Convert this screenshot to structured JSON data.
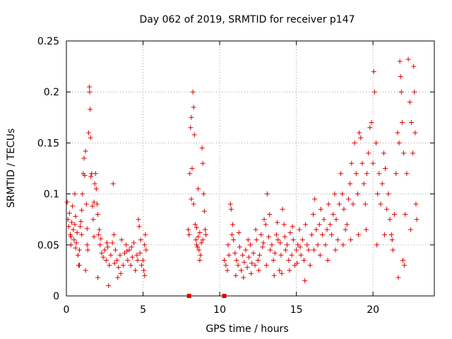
{
  "chart_data": {
    "type": "scatter",
    "title": "Day 062 of 2019, SRMTID for receiver p147",
    "xlabel": "GPS time / hours",
    "ylabel": "SRMTID / TECUs",
    "xlim": [
      0,
      24
    ],
    "ylim": [
      0,
      0.25
    ],
    "xticks": [
      0,
      5,
      10,
      15,
      20
    ],
    "xtick_labels": [
      "0",
      "5",
      "10",
      "15",
      "20"
    ],
    "yticks": [
      0,
      0.05,
      0.1,
      0.15,
      0.2,
      0.25
    ],
    "ytick_labels": [
      "0",
      "0.05",
      "0.1",
      "0.15",
      "0.2",
      "0.25"
    ],
    "grid": true,
    "marker": "+",
    "color": "#e00000",
    "series": [
      {
        "name": "SRMTID",
        "points": [
          [
            0.05,
            0.092
          ],
          [
            0.1,
            0.075
          ],
          [
            0.15,
            0.068
          ],
          [
            0.2,
            0.081
          ],
          [
            0.25,
            0.06
          ],
          [
            0.3,
            0.058
          ],
          [
            0.35,
            0.072
          ],
          [
            0.4,
            0.088
          ],
          [
            0.45,
            0.065
          ],
          [
            0.5,
            0.055
          ],
          [
            0.55,
            0.07
          ],
          [
            0.6,
            0.078
          ],
          [
            0.65,
            0.052
          ],
          [
            0.7,
            0.062
          ],
          [
            0.75,
            0.04
          ],
          [
            0.8,
            0.03
          ],
          [
            0.85,
            0.045
          ],
          [
            0.9,
            0.068
          ],
          [
            0.95,
            0.073
          ],
          [
            1.0,
            0.084
          ],
          [
            1.05,
            0.1
          ],
          [
            1.1,
            0.12
          ],
          [
            1.15,
            0.135
          ],
          [
            1.2,
            0.118
          ],
          [
            1.25,
            0.142
          ],
          [
            1.3,
            0.09
          ],
          [
            1.35,
            0.05
          ],
          [
            1.4,
            0.045
          ],
          [
            1.45,
            0.16
          ],
          [
            1.5,
            0.205
          ],
          [
            1.52,
            0.2
          ],
          [
            1.55,
            0.183
          ],
          [
            1.58,
            0.155
          ],
          [
            1.6,
            0.117
          ],
          [
            1.65,
            0.12
          ],
          [
            1.7,
            0.088
          ],
          [
            1.75,
            0.075
          ],
          [
            1.8,
            0.092
          ],
          [
            1.85,
            0.11
          ],
          [
            1.9,
            0.12
          ],
          [
            1.95,
            0.105
          ],
          [
            2.0,
            0.09
          ],
          [
            2.05,
            0.08
          ],
          [
            2.1,
            0.06
          ],
          [
            2.15,
            0.065
          ],
          [
            2.2,
            0.05
          ],
          [
            2.3,
            0.042
          ],
          [
            2.4,
            0.038
          ],
          [
            2.5,
            0.045
          ],
          [
            2.6,
            0.035
          ],
          [
            2.7,
            0.048
          ],
          [
            2.8,
            0.03
          ],
          [
            2.9,
            0.04
          ],
          [
            3.0,
            0.052
          ],
          [
            3.05,
            0.11
          ],
          [
            3.1,
            0.06
          ],
          [
            3.2,
            0.045
          ],
          [
            3.3,
            0.035
          ],
          [
            3.4,
            0.028
          ],
          [
            3.5,
            0.04
          ],
          [
            3.6,
            0.055
          ],
          [
            3.7,
            0.03
          ],
          [
            3.8,
            0.042
          ],
          [
            3.9,
            0.05
          ],
          [
            4.0,
            0.035
          ],
          [
            4.1,
            0.045
          ],
          [
            4.2,
            0.03
          ],
          [
            4.3,
            0.038
          ],
          [
            4.4,
            0.052
          ],
          [
            4.5,
            0.025
          ],
          [
            4.6,
            0.04
          ],
          [
            4.7,
            0.075
          ],
          [
            4.75,
            0.068
          ],
          [
            4.8,
            0.042
          ],
          [
            4.9,
            0.03
          ],
          [
            5.0,
            0.035
          ],
          [
            5.05,
            0.025
          ],
          [
            5.1,
            0.05
          ],
          [
            5.15,
            0.06
          ],
          [
            5.2,
            0.045
          ],
          [
            0.3,
            0.05
          ],
          [
            0.6,
            0.047
          ],
          [
            1.0,
            0.06
          ],
          [
            1.35,
            0.066
          ],
          [
            1.8,
            0.058
          ],
          [
            2.25,
            0.056
          ],
          [
            2.65,
            0.052
          ],
          [
            3.15,
            0.032
          ],
          [
            3.55,
            0.022
          ],
          [
            3.95,
            0.044
          ],
          [
            4.25,
            0.048
          ],
          [
            4.65,
            0.035
          ],
          [
            5.1,
            0.02
          ],
          [
            2.05,
            0.018
          ],
          [
            1.25,
            0.025
          ],
          [
            0.85,
            0.03
          ],
          [
            2.75,
            0.01
          ],
          [
            3.35,
            0.018
          ],
          [
            4.85,
            0.055
          ],
          [
            0.55,
            0.1
          ],
          [
            7.95,
            0.065
          ],
          [
            8.0,
            0.06
          ],
          [
            8.05,
            0.12
          ],
          [
            8.1,
            0.165
          ],
          [
            8.15,
            0.175
          ],
          [
            8.2,
            0.125
          ],
          [
            8.25,
            0.2
          ],
          [
            8.3,
            0.185
          ],
          [
            8.35,
            0.158
          ],
          [
            8.4,
            0.07
          ],
          [
            8.45,
            0.055
          ],
          [
            8.5,
            0.05
          ],
          [
            8.55,
            0.048
          ],
          [
            8.6,
            0.058
          ],
          [
            8.65,
            0.045
          ],
          [
            8.7,
            0.035
          ],
          [
            8.75,
            0.04
          ],
          [
            8.8,
            0.052
          ],
          [
            8.85,
            0.145
          ],
          [
            8.9,
            0.13
          ],
          [
            8.95,
            0.1
          ],
          [
            9.0,
            0.083
          ],
          [
            9.05,
            0.065
          ],
          [
            9.1,
            0.06
          ],
          [
            8.3,
            0.09
          ],
          [
            8.5,
            0.067
          ],
          [
            8.7,
            0.062
          ],
          [
            8.9,
            0.055
          ],
          [
            8.15,
            0.095
          ],
          [
            8.6,
            0.105
          ],
          [
            10.3,
            0.035
          ],
          [
            10.4,
            0.03
          ],
          [
            10.5,
            0.025
          ],
          [
            10.6,
            0.04
          ],
          [
            10.7,
            0.09
          ],
          [
            10.75,
            0.085
          ],
          [
            10.8,
            0.06
          ],
          [
            10.9,
            0.055
          ],
          [
            11.0,
            0.042
          ],
          [
            11.1,
            0.035
          ],
          [
            11.2,
            0.03
          ],
          [
            11.3,
            0.048
          ],
          [
            11.4,
            0.025
          ],
          [
            11.5,
            0.04
          ],
          [
            11.6,
            0.033
          ],
          [
            11.7,
            0.045
          ],
          [
            11.8,
            0.028
          ],
          [
            11.9,
            0.038
          ],
          [
            12.0,
            0.05
          ],
          [
            12.1,
            0.032
          ],
          [
            12.2,
            0.042
          ],
          [
            12.3,
            0.03
          ],
          [
            12.4,
            0.055
          ],
          [
            12.5,
            0.035
          ],
          [
            12.6,
            0.04
          ],
          [
            12.7,
            0.06
          ],
          [
            12.8,
            0.048
          ],
          [
            12.9,
            0.075
          ],
          [
            13.0,
            0.07
          ],
          [
            13.1,
            0.1
          ],
          [
            13.2,
            0.058
          ],
          [
            13.3,
            0.045
          ],
          [
            13.4,
            0.05
          ],
          [
            13.5,
            0.035
          ],
          [
            13.6,
            0.042
          ],
          [
            13.7,
            0.06
          ],
          [
            13.8,
            0.055
          ],
          [
            13.9,
            0.025
          ],
          [
            14.0,
            0.04
          ],
          [
            14.1,
            0.085
          ],
          [
            14.2,
            0.07
          ],
          [
            14.3,
            0.045
          ],
          [
            14.4,
            0.05
          ],
          [
            14.5,
            0.035
          ],
          [
            14.6,
            0.062
          ],
          [
            14.7,
            0.04
          ],
          [
            14.8,
            0.055
          ],
          [
            14.9,
            0.03
          ],
          [
            15.0,
            0.045
          ],
          [
            15.1,
            0.05
          ],
          [
            15.2,
            0.065
          ],
          [
            15.3,
            0.04
          ],
          [
            15.4,
            0.055
          ],
          [
            15.5,
            0.035
          ],
          [
            15.6,
            0.07
          ],
          [
            15.7,
            0.05
          ],
          [
            15.8,
            0.045
          ],
          [
            15.9,
            0.03
          ],
          [
            10.55,
            0.05
          ],
          [
            11.05,
            0.02
          ],
          [
            11.55,
            0.018
          ],
          [
            12.05,
            0.022
          ],
          [
            12.55,
            0.025
          ],
          [
            13.05,
            0.03
          ],
          [
            13.55,
            0.02
          ],
          [
            14.05,
            0.022
          ],
          [
            14.55,
            0.025
          ],
          [
            15.05,
            0.032
          ],
          [
            15.55,
            0.015
          ],
          [
            11.25,
            0.062
          ],
          [
            12.35,
            0.065
          ],
          [
            13.25,
            0.08
          ],
          [
            13.75,
            0.072
          ],
          [
            14.25,
            0.058
          ],
          [
            14.75,
            0.068
          ],
          [
            15.25,
            0.048
          ],
          [
            10.85,
            0.07
          ],
          [
            11.85,
            0.055
          ],
          [
            12.85,
            0.052
          ],
          [
            13.95,
            0.052
          ],
          [
            16.0,
            0.06
          ],
          [
            16.1,
            0.08
          ],
          [
            16.2,
            0.095
          ],
          [
            16.3,
            0.065
          ],
          [
            16.4,
            0.05
          ],
          [
            16.5,
            0.07
          ],
          [
            16.6,
            0.085
          ],
          [
            16.7,
            0.06
          ],
          [
            16.8,
            0.075
          ],
          [
            16.9,
            0.05
          ],
          [
            17.0,
            0.065
          ],
          [
            17.1,
            0.09
          ],
          [
            17.2,
            0.07
          ],
          [
            17.3,
            0.06
          ],
          [
            17.4,
            0.08
          ],
          [
            17.5,
            0.1
          ],
          [
            17.6,
            0.075
          ],
          [
            17.7,
            0.055
          ],
          [
            17.8,
            0.09
          ],
          [
            17.9,
            0.12
          ],
          [
            18.0,
            0.1
          ],
          [
            18.1,
            0.085
          ],
          [
            18.2,
            0.065
          ],
          [
            18.3,
            0.07
          ],
          [
            18.4,
            0.095
          ],
          [
            18.5,
            0.11
          ],
          [
            18.6,
            0.13
          ],
          [
            18.7,
            0.09
          ],
          [
            18.8,
            0.15
          ],
          [
            18.9,
            0.12
          ],
          [
            19.0,
            0.1
          ],
          [
            19.1,
            0.16
          ],
          [
            19.2,
            0.155
          ],
          [
            19.3,
            0.13
          ],
          [
            19.4,
            0.11
          ],
          [
            19.5,
            0.09
          ],
          [
            19.6,
            0.12
          ],
          [
            19.7,
            0.14
          ],
          [
            19.8,
            0.165
          ],
          [
            19.9,
            0.17
          ],
          [
            20.0,
            0.13
          ],
          [
            20.05,
            0.22
          ],
          [
            20.1,
            0.2
          ],
          [
            20.2,
            0.15
          ],
          [
            20.3,
            0.1
          ],
          [
            20.4,
            0.12
          ],
          [
            20.5,
            0.09
          ],
          [
            20.6,
            0.11
          ],
          [
            20.7,
            0.14
          ],
          [
            20.8,
            0.125
          ],
          [
            20.9,
            0.085
          ],
          [
            21.0,
            0.1
          ],
          [
            21.1,
            0.075
          ],
          [
            21.2,
            0.06
          ],
          [
            21.3,
            0.045
          ],
          [
            21.4,
            0.08
          ],
          [
            21.5,
            0.12
          ],
          [
            21.6,
            0.16
          ],
          [
            21.7,
            0.15
          ],
          [
            21.75,
            0.23
          ],
          [
            21.8,
            0.215
          ],
          [
            21.85,
            0.2
          ],
          [
            21.9,
            0.17
          ],
          [
            22.0,
            0.14
          ],
          [
            22.05,
            0.03
          ],
          [
            22.1,
            0.08
          ],
          [
            22.2,
            0.12
          ],
          [
            22.3,
            0.232
          ],
          [
            22.4,
            0.19
          ],
          [
            22.5,
            0.17
          ],
          [
            22.6,
            0.14
          ],
          [
            22.65,
            0.225
          ],
          [
            22.7,
            0.2
          ],
          [
            22.75,
            0.16
          ],
          [
            22.8,
            0.09
          ],
          [
            22.85,
            0.075
          ],
          [
            16.15,
            0.045
          ],
          [
            16.55,
            0.04
          ],
          [
            17.05,
            0.035
          ],
          [
            17.55,
            0.045
          ],
          [
            18.05,
            0.05
          ],
          [
            18.55,
            0.055
          ],
          [
            19.05,
            0.06
          ],
          [
            19.55,
            0.065
          ],
          [
            20.25,
            0.05
          ],
          [
            20.75,
            0.06
          ],
          [
            21.25,
            0.055
          ],
          [
            21.65,
            0.018
          ],
          [
            21.95,
            0.035
          ],
          [
            22.45,
            0.065
          ]
        ]
      }
    ],
    "gap_markers_x": [
      8.0,
      10.3
    ]
  }
}
